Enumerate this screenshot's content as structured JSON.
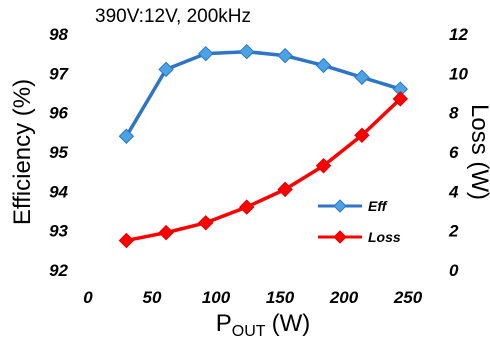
{
  "chart_data": {
    "type": "line",
    "title": "390V:12V, 200kHz",
    "xlabel": "P",
    "xlabel_sub": "OUT",
    "xlabel_unit": "(W)",
    "ylabel_left": "Efficiency (%)",
    "ylabel_right": "Loss (W)",
    "xlim": [
      0,
      275
    ],
    "xticks": [
      0,
      50,
      100,
      150,
      200,
      250
    ],
    "ylim_left": [
      92,
      98
    ],
    "yticks_left": [
      92,
      93,
      94,
      95,
      96,
      97,
      98
    ],
    "ylim_right": [
      0,
      12
    ],
    "yticks_right": [
      0,
      2,
      4,
      6,
      8,
      10,
      12
    ],
    "legend_position": "lower-right",
    "grid": false,
    "series": [
      {
        "name": "Eff",
        "axis": "left",
        "color": "#2E75C7",
        "marker": "diamond",
        "x": [
          30,
          61,
          92,
          124,
          154,
          184,
          214,
          244
        ],
        "values": [
          95.4,
          97.1,
          97.5,
          97.55,
          97.45,
          97.2,
          96.9,
          96.6
        ]
      },
      {
        "name": "Loss",
        "axis": "right",
        "color": "#FF0000",
        "marker": "diamond",
        "x": [
          30,
          61,
          92,
          124,
          154,
          184,
          214,
          244
        ],
        "values": [
          1.5,
          1.9,
          2.4,
          3.2,
          4.1,
          5.3,
          6.85,
          8.7
        ]
      }
    ]
  }
}
